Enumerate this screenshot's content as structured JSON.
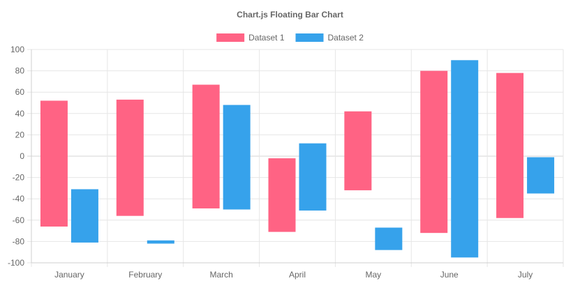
{
  "chart_data": {
    "type": "bar",
    "subtype": "floating",
    "title": "Chart.js Floating Bar Chart",
    "xlabel": "",
    "ylabel": "",
    "categories": [
      "January",
      "February",
      "March",
      "April",
      "May",
      "June",
      "July"
    ],
    "ylim": [
      -100,
      100
    ],
    "yticks": [
      100,
      80,
      60,
      40,
      20,
      0,
      -20,
      -40,
      -60,
      -80,
      -100
    ],
    "grid": true,
    "legend_position": "top",
    "series": [
      {
        "name": "Dataset 1",
        "color": "#ff6384",
        "ranges": [
          [
            -66,
            52
          ],
          [
            -56,
            53
          ],
          [
            -49,
            67
          ],
          [
            -71,
            -2
          ],
          [
            -32,
            42
          ],
          [
            -72,
            80
          ],
          [
            -58,
            78
          ]
        ]
      },
      {
        "name": "Dataset 2",
        "color": "#36a2eb",
        "ranges": [
          [
            -81,
            -31
          ],
          [
            -82,
            -79
          ],
          [
            -50,
            48
          ],
          [
            -51,
            12
          ],
          [
            -88,
            -67
          ],
          [
            -95,
            90
          ],
          [
            -35,
            -1
          ]
        ]
      }
    ]
  }
}
